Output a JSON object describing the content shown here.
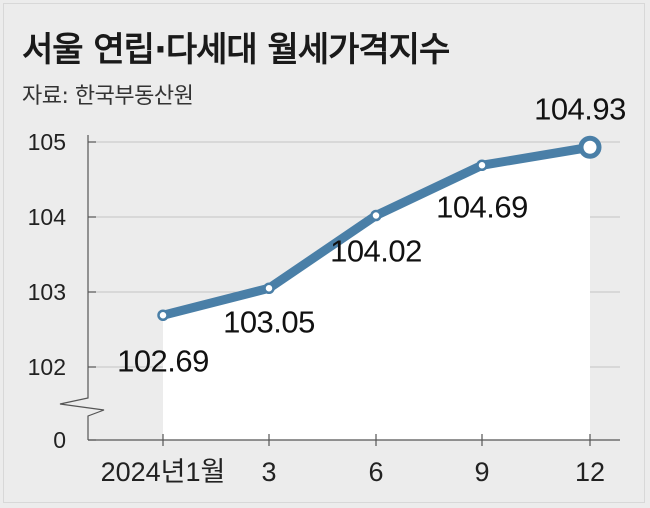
{
  "title": "서울 연립·다세대 월세가격지수",
  "source": "자료: 한국부동산원",
  "colors": {
    "line": "#4a7fa7",
    "area": "#ffffff",
    "background": "#ececec",
    "grid": "#c4c4c4"
  },
  "chart_data": {
    "type": "line",
    "title": "서울 연립·다세대 월세가격지수",
    "categories": [
      "2024년1월",
      "3",
      "6",
      "9",
      "12"
    ],
    "values": [
      102.69,
      103.05,
      104.02,
      104.69,
      104.93
    ],
    "data_labels": [
      "102.69",
      "103.05",
      "104.02",
      "104.69",
      "104.93"
    ],
    "y_ticks": [
      "105",
      "104",
      "103",
      "102",
      "0"
    ],
    "ylim": [
      102,
      105
    ],
    "axis_break": true,
    "grid": true,
    "xlabel": "",
    "ylabel": ""
  }
}
